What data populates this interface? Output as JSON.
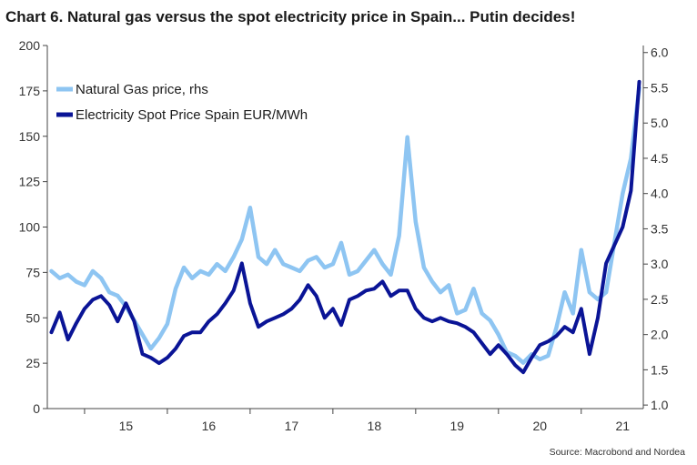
{
  "chart_data": {
    "type": "line",
    "title": "Chart 6. Natural gas versus the spot electricity price in Spain... Putin decides!",
    "source": "Source: Macrobond and Nordea",
    "x_tick_labels": [
      "15",
      "16",
      "17",
      "18",
      "19",
      "20",
      "21"
    ],
    "x_range": [
      2014.55,
      2021.75
    ],
    "left_axis": {
      "ylim": [
        0,
        200
      ],
      "ticks": [
        "0",
        "25",
        "50",
        "75",
        "100",
        "125",
        "150",
        "175",
        "200"
      ]
    },
    "right_axis": {
      "ylim": [
        0.95,
        6.1
      ],
      "ticks": [
        "1.0",
        "1.5",
        "2.0",
        "2.5",
        "3.0",
        "3.5",
        "4.0",
        "4.5",
        "5.0",
        "5.5",
        "6.0"
      ]
    },
    "colors": {
      "gas": "#8ec5f2",
      "electricity": "#0a1496",
      "axis": "#444444"
    },
    "series": [
      {
        "name": "Natural Gas price, rhs",
        "axis": "right",
        "x": [
          2014.6,
          2014.7,
          2014.8,
          2014.9,
          2015.0,
          2015.1,
          2015.2,
          2015.3,
          2015.4,
          2015.5,
          2015.6,
          2015.7,
          2015.8,
          2015.9,
          2016.0,
          2016.1,
          2016.2,
          2016.3,
          2016.4,
          2016.5,
          2016.6,
          2016.7,
          2016.8,
          2016.9,
          2017.0,
          2017.1,
          2017.2,
          2017.3,
          2017.4,
          2017.5,
          2017.6,
          2017.7,
          2017.8,
          2017.9,
          2018.0,
          2018.1,
          2018.2,
          2018.3,
          2018.4,
          2018.5,
          2018.6,
          2018.7,
          2018.8,
          2018.9,
          2019.0,
          2019.1,
          2019.2,
          2019.3,
          2019.4,
          2019.5,
          2019.6,
          2019.7,
          2019.8,
          2019.9,
          2020.0,
          2020.1,
          2020.2,
          2020.3,
          2020.4,
          2020.5,
          2020.6,
          2020.7,
          2020.8,
          2020.9,
          2021.0,
          2021.1,
          2021.2,
          2021.3,
          2021.4,
          2021.5,
          2021.6,
          2021.7
        ],
        "values": [
          2.9,
          2.8,
          2.85,
          2.75,
          2.7,
          2.9,
          2.8,
          2.6,
          2.55,
          2.4,
          2.2,
          2.0,
          1.8,
          1.95,
          2.15,
          2.65,
          2.95,
          2.8,
          2.9,
          2.85,
          3.0,
          2.9,
          3.1,
          3.35,
          3.8,
          3.1,
          3.0,
          3.2,
          3.0,
          2.95,
          2.9,
          3.05,
          3.1,
          2.95,
          3.0,
          3.3,
          2.85,
          2.9,
          3.05,
          3.2,
          3.0,
          2.85,
          3.4,
          4.8,
          3.6,
          2.95,
          2.75,
          2.6,
          2.7,
          2.3,
          2.35,
          2.65,
          2.3,
          2.2,
          2.0,
          1.75,
          1.7,
          1.6,
          1.72,
          1.65,
          1.7,
          2.1,
          2.6,
          2.3,
          3.2,
          2.6,
          2.5,
          2.6,
          3.3,
          4.0,
          4.5,
          5.5
        ],
        "line_width": 4.5
      },
      {
        "name": "Electricity Spot Price Spain EUR/MWh",
        "axis": "left",
        "x": [
          2014.6,
          2014.7,
          2014.8,
          2014.9,
          2015.0,
          2015.1,
          2015.2,
          2015.3,
          2015.4,
          2015.5,
          2015.6,
          2015.7,
          2015.8,
          2015.9,
          2016.0,
          2016.1,
          2016.2,
          2016.3,
          2016.4,
          2016.5,
          2016.6,
          2016.7,
          2016.8,
          2016.9,
          2017.0,
          2017.1,
          2017.2,
          2017.3,
          2017.4,
          2017.5,
          2017.6,
          2017.7,
          2017.8,
          2017.9,
          2018.0,
          2018.1,
          2018.2,
          2018.3,
          2018.4,
          2018.5,
          2018.6,
          2018.7,
          2018.8,
          2018.9,
          2019.0,
          2019.1,
          2019.2,
          2019.3,
          2019.4,
          2019.5,
          2019.6,
          2019.7,
          2019.8,
          2019.9,
          2020.0,
          2020.1,
          2020.2,
          2020.3,
          2020.4,
          2020.5,
          2020.6,
          2020.7,
          2020.8,
          2020.9,
          2021.0,
          2021.1,
          2021.2,
          2021.3,
          2021.4,
          2021.5,
          2021.6,
          2021.7
        ],
        "values": [
          42,
          53,
          38,
          47,
          55,
          60,
          62,
          57,
          48,
          58,
          48,
          30,
          28,
          25,
          28,
          33,
          40,
          42,
          42,
          48,
          52,
          58,
          65,
          80,
          58,
          45,
          48,
          50,
          52,
          55,
          60,
          68,
          62,
          50,
          55,
          46,
          60,
          62,
          65,
          66,
          70,
          62,
          65,
          65,
          55,
          50,
          48,
          50,
          48,
          47,
          45,
          42,
          36,
          30,
          35,
          30,
          24,
          20,
          28,
          35,
          37,
          40,
          45,
          42,
          55,
          30,
          50,
          80,
          90,
          100,
          120,
          180
        ],
        "line_width": 4
      }
    ]
  }
}
